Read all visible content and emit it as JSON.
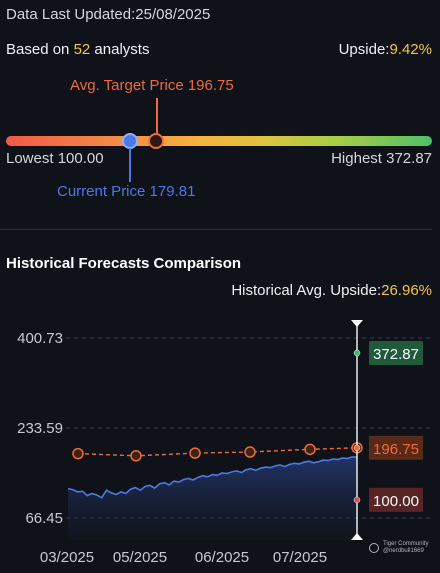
{
  "header": {
    "updated_label": "Data Last Updated:",
    "updated_date": "25/08/2025",
    "analysts_prefix": "Based on ",
    "analysts_count": "52",
    "analysts_suffix": " analysts",
    "upside_label": "Upside:",
    "upside_value": "9.42%"
  },
  "range": {
    "target_label": "Avg. Target Price 196.75",
    "current_label": "Current Price 179.81",
    "lowest_label": "Lowest 100.00",
    "highest_label": "Highest 372.87",
    "low": 100.0,
    "high": 372.87,
    "current": 179.81,
    "target": 196.75
  },
  "history": {
    "title": "Historical Forecasts Comparison",
    "upside_label": "Historical Avg. Upside:",
    "upside_value": "26.96%"
  },
  "colors": {
    "accent_yellow": "#f5c542",
    "target_orange": "#f06a3c",
    "current_blue": "#4a7ae8",
    "high_green": "#1f5a3a",
    "low_red": "#5a2424"
  },
  "chart_data": {
    "type": "line",
    "ylim": [
      66.45,
      400.73
    ],
    "y_ticks": [
      "400.73",
      "233.59",
      "66.45"
    ],
    "x_ticks": [
      "03/2025",
      "05/2025",
      "06/2025",
      "07/2025"
    ],
    "series": [
      {
        "values": [
          121,
          119,
          115,
          116,
          108,
          112,
          109,
          104,
          118,
          113,
          110,
          115,
          112,
          120,
          123,
          118,
          125,
          127,
          122,
          130,
          132,
          128,
          135,
          133,
          138,
          140,
          137,
          142,
          145,
          143,
          147,
          146,
          150,
          149,
          152,
          154,
          151,
          156,
          158,
          155,
          159,
          161,
          160,
          163,
          165,
          162,
          166,
          168,
          167,
          170,
          172,
          169,
          171,
          174,
          173,
          176,
          175,
          178,
          177,
          180,
          179.81
        ]
      },
      {
        "values": [
          186,
          182,
          187,
          189,
          194,
          196.75
        ]
      }
    ],
    "end_labels": {
      "high": "372.87",
      "target": "196.75",
      "low": "100.00"
    }
  },
  "watermark": {
    "line1": "Tiger Community",
    "line2": "@nerdbull1669"
  }
}
